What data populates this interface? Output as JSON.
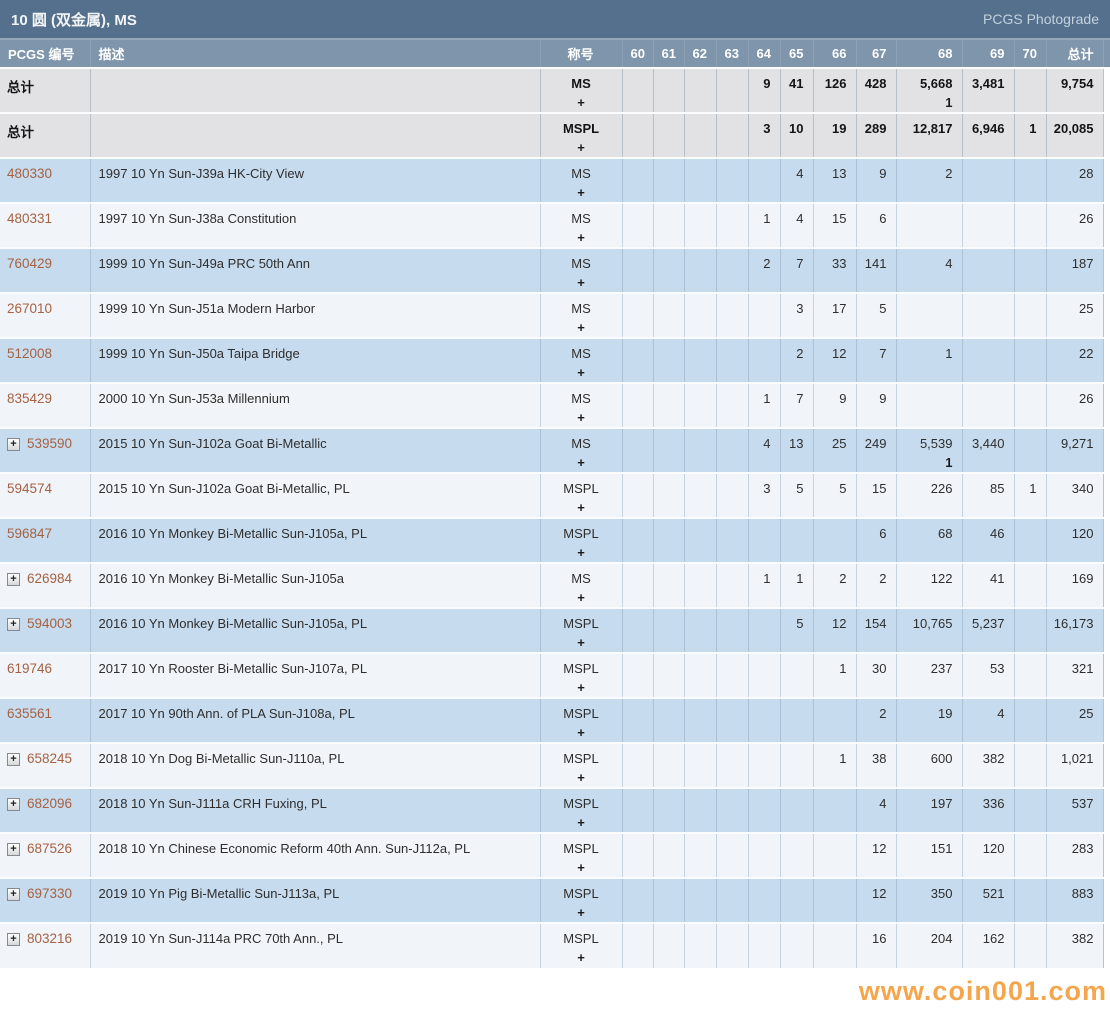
{
  "header": {
    "title": "10 圆 (双金属), MS",
    "photograde": "PCGS Photograde"
  },
  "table": {
    "columns": [
      "PCGS 编号",
      "描述",
      "称号",
      "60",
      "61",
      "62",
      "63",
      "64",
      "65",
      "66",
      "67",
      "68",
      "69",
      "70",
      "总计"
    ],
    "plus_label": "+",
    "rows": [
      {
        "type": "total",
        "label": "总计",
        "desc": "",
        "designation": "MS",
        "grades": [
          "",
          "",
          "",
          "",
          "9",
          "41",
          "126",
          "428",
          "5,668",
          "3,481",
          ""
        ],
        "plus": [
          "",
          "",
          "",
          "",
          "",
          "",
          "",
          "",
          "1",
          "",
          ""
        ],
        "total": "9,754"
      },
      {
        "type": "total",
        "label": "总计",
        "desc": "",
        "designation": "MSPL",
        "grades": [
          "",
          "",
          "",
          "",
          "3",
          "10",
          "19",
          "289",
          "12,817",
          "6,946",
          "1"
        ],
        "total": "20,085"
      },
      {
        "type": "data",
        "shade": "blue",
        "pcgs": "480330",
        "expand": false,
        "desc": "1997 10 Yn Sun-J39a HK-City View",
        "designation": "MS",
        "grades": [
          "",
          "",
          "",
          "",
          "",
          "4",
          "13",
          "9",
          "2",
          "",
          ""
        ],
        "total": "28"
      },
      {
        "type": "data",
        "shade": "light",
        "pcgs": "480331",
        "expand": false,
        "desc": "1997 10 Yn Sun-J38a Constitution",
        "designation": "MS",
        "grades": [
          "",
          "",
          "",
          "",
          "1",
          "4",
          "15",
          "6",
          "",
          "",
          ""
        ],
        "total": "26"
      },
      {
        "type": "data",
        "shade": "blue",
        "pcgs": "760429",
        "expand": false,
        "desc": "1999 10 Yn Sun-J49a PRC 50th Ann",
        "designation": "MS",
        "grades": [
          "",
          "",
          "",
          "",
          "2",
          "7",
          "33",
          "141",
          "4",
          "",
          ""
        ],
        "total": "187"
      },
      {
        "type": "data",
        "shade": "light",
        "pcgs": "267010",
        "expand": false,
        "desc": "1999 10 Yn Sun-J51a Modern Harbor",
        "designation": "MS",
        "grades": [
          "",
          "",
          "",
          "",
          "",
          "3",
          "17",
          "5",
          "",
          "",
          ""
        ],
        "total": "25"
      },
      {
        "type": "data",
        "shade": "blue",
        "pcgs": "512008",
        "expand": false,
        "desc": "1999 10 Yn Sun-J50a Taipa Bridge",
        "designation": "MS",
        "grades": [
          "",
          "",
          "",
          "",
          "",
          "2",
          "12",
          "7",
          "1",
          "",
          ""
        ],
        "total": "22"
      },
      {
        "type": "data",
        "shade": "light",
        "pcgs": "835429",
        "expand": false,
        "desc": "2000 10 Yn Sun-J53a Millennium",
        "designation": "MS",
        "grades": [
          "",
          "",
          "",
          "",
          "1",
          "7",
          "9",
          "9",
          "",
          "",
          ""
        ],
        "total": "26"
      },
      {
        "type": "data",
        "shade": "blue",
        "pcgs": "539590",
        "expand": true,
        "desc": "2015 10 Yn Sun-J102a Goat Bi-Metallic",
        "designation": "MS",
        "grades": [
          "",
          "",
          "",
          "",
          "4",
          "13",
          "25",
          "249",
          "5,539",
          "3,440",
          ""
        ],
        "plus": [
          "",
          "",
          "",
          "",
          "",
          "",
          "",
          "",
          "1",
          "",
          ""
        ],
        "total": "9,271"
      },
      {
        "type": "data",
        "shade": "light",
        "pcgs": "594574",
        "expand": false,
        "desc": "2015 10 Yn Sun-J102a Goat Bi-Metallic, PL",
        "designation": "MSPL",
        "grades": [
          "",
          "",
          "",
          "",
          "3",
          "5",
          "5",
          "15",
          "226",
          "85",
          "1"
        ],
        "total": "340"
      },
      {
        "type": "data",
        "shade": "blue",
        "pcgs": "596847",
        "expand": false,
        "desc": "2016 10 Yn Monkey Bi-Metallic Sun-J105a, PL",
        "designation": "MSPL",
        "grades": [
          "",
          "",
          "",
          "",
          "",
          "",
          "",
          "6",
          "68",
          "46",
          ""
        ],
        "total": "120"
      },
      {
        "type": "data",
        "shade": "light",
        "pcgs": "626984",
        "expand": true,
        "desc": "2016 10 Yn Monkey Bi-Metallic Sun-J105a",
        "designation": "MS",
        "grades": [
          "",
          "",
          "",
          "",
          "1",
          "1",
          "2",
          "2",
          "122",
          "41",
          ""
        ],
        "total": "169"
      },
      {
        "type": "data",
        "shade": "blue",
        "pcgs": "594003",
        "expand": true,
        "desc": "2016 10 Yn Monkey Bi-Metallic Sun-J105a, PL",
        "designation": "MSPL",
        "grades": [
          "",
          "",
          "",
          "",
          "",
          "5",
          "12",
          "154",
          "10,765",
          "5,237",
          ""
        ],
        "total": "16,173"
      },
      {
        "type": "data",
        "shade": "light",
        "pcgs": "619746",
        "expand": false,
        "desc": "2017 10 Yn Rooster Bi-Metallic Sun-J107a, PL",
        "designation": "MSPL",
        "grades": [
          "",
          "",
          "",
          "",
          "",
          "",
          "1",
          "30",
          "237",
          "53",
          ""
        ],
        "total": "321"
      },
      {
        "type": "data",
        "shade": "blue",
        "pcgs": "635561",
        "expand": false,
        "desc": "2017 10 Yn 90th Ann. of PLA Sun-J108a, PL",
        "designation": "MSPL",
        "grades": [
          "",
          "",
          "",
          "",
          "",
          "",
          "",
          "2",
          "19",
          "4",
          ""
        ],
        "total": "25"
      },
      {
        "type": "data",
        "shade": "light",
        "pcgs": "658245",
        "expand": true,
        "desc": "2018 10 Yn Dog Bi-Metallic Sun-J110a, PL",
        "designation": "MSPL",
        "grades": [
          "",
          "",
          "",
          "",
          "",
          "",
          "1",
          "38",
          "600",
          "382",
          ""
        ],
        "total": "1,021"
      },
      {
        "type": "data",
        "shade": "blue",
        "pcgs": "682096",
        "expand": true,
        "desc": "2018 10 Yn Sun-J111a CRH Fuxing, PL",
        "designation": "MSPL",
        "grades": [
          "",
          "",
          "",
          "",
          "",
          "",
          "",
          "4",
          "197",
          "336",
          ""
        ],
        "total": "537"
      },
      {
        "type": "data",
        "shade": "light",
        "pcgs": "687526",
        "expand": true,
        "desc": "2018 10 Yn Chinese Economic Reform 40th Ann. Sun-J112a, PL",
        "designation": "MSPL",
        "grades": [
          "",
          "",
          "",
          "",
          "",
          "",
          "",
          "12",
          "151",
          "120",
          ""
        ],
        "total": "283"
      },
      {
        "type": "data",
        "shade": "blue",
        "pcgs": "697330",
        "expand": true,
        "desc": "2019 10 Yn Pig Bi-Metallic Sun-J113a, PL",
        "designation": "MSPL",
        "grades": [
          "",
          "",
          "",
          "",
          "",
          "",
          "",
          "12",
          "350",
          "521",
          ""
        ],
        "total": "883"
      },
      {
        "type": "data",
        "shade": "light",
        "pcgs": "803216",
        "expand": true,
        "desc": "2019 10 Yn Sun-J114a PRC 70th Ann., PL",
        "designation": "MSPL",
        "grades": [
          "",
          "",
          "",
          "",
          "",
          "",
          "",
          "16",
          "204",
          "162",
          ""
        ],
        "total": "382"
      }
    ]
  },
  "watermark": "www.coin001.com",
  "colors": {
    "title_bar": "#54708c",
    "header_row": "#7e95ab",
    "row_blue": "#c6dbee",
    "row_light": "#f1f5fa",
    "row_total_gray": "#e2e2e4",
    "link": "#a66142",
    "watermark_orange": "#f39226"
  }
}
